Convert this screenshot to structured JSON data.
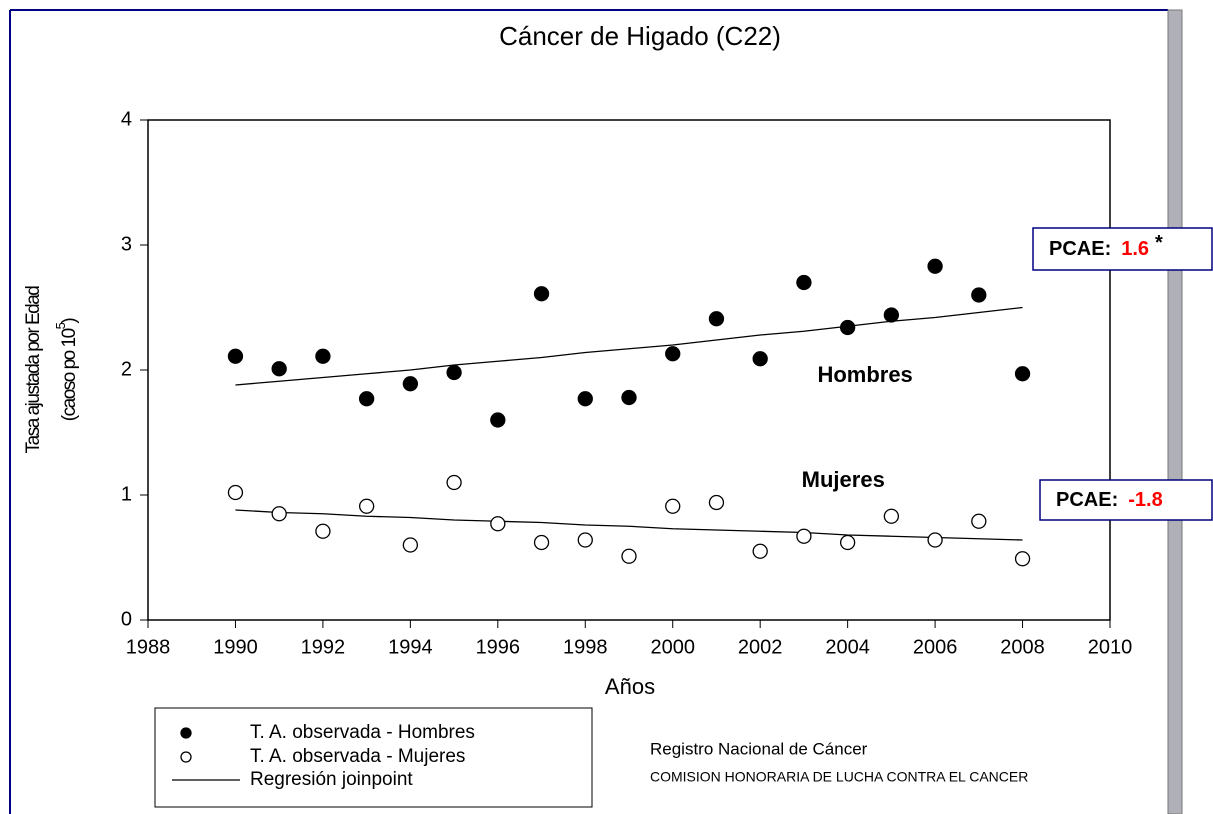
{
  "chart_data": {
    "type": "scatter",
    "title": "Cáncer de Higado (C22)",
    "x_label": "Años",
    "y_label": "Tasa ajustada por Edad",
    "y_label_2": {
      "text": "(caoso po 10",
      "sup": "5",
      "end": ")"
    },
    "x": [
      1990,
      1991,
      1992,
      1993,
      1994,
      1995,
      1996,
      1997,
      1998,
      1999,
      2000,
      2001,
      2002,
      2003,
      2004,
      2005,
      2006,
      2007,
      2008
    ],
    "xlim": [
      1988,
      2010
    ],
    "xticks": [
      1988,
      1990,
      1992,
      1994,
      1996,
      1998,
      2000,
      2002,
      2004,
      2006,
      2008,
      2010
    ],
    "ylim": [
      0,
      4
    ],
    "yticks": [
      0,
      1,
      2,
      3,
      4
    ],
    "series": [
      {
        "name": "T. A. observada - Hombres",
        "marker": "filled",
        "color": "#000000",
        "values": [
          2.11,
          2.01,
          2.11,
          1.77,
          1.89,
          1.98,
          1.6,
          2.61,
          1.77,
          1.78,
          2.13,
          2.41,
          2.09,
          2.7,
          2.34,
          2.44,
          2.83,
          2.6,
          1.97
        ]
      },
      {
        "name": "T. A. observada - Mujeres",
        "marker": "open",
        "color": "#000000",
        "values": [
          1.02,
          0.85,
          0.71,
          0.91,
          0.6,
          1.1,
          0.77,
          0.62,
          0.64,
          0.51,
          0.91,
          0.94,
          0.55,
          0.67,
          0.62,
          0.83,
          0.64,
          0.79,
          0.49
        ]
      }
    ],
    "regression": {
      "name": "Regresión joinpoint",
      "color": "#000000",
      "lines": [
        {
          "values": [
            1.88,
            1.91,
            1.94,
            1.97,
            2.0,
            2.04,
            2.07,
            2.1,
            2.14,
            2.17,
            2.2,
            2.24,
            2.28,
            2.31,
            2.35,
            2.39,
            2.42,
            2.46,
            2.5
          ]
        },
        {
          "values": [
            0.88,
            0.86,
            0.85,
            0.83,
            0.82,
            0.8,
            0.79,
            0.78,
            0.76,
            0.75,
            0.73,
            0.72,
            0.71,
            0.7,
            0.68,
            0.67,
            0.66,
            0.65,
            0.64
          ]
        }
      ]
    },
    "annotations": [
      {
        "text": "Hombres",
        "x": 2004.4,
        "y": 1.95
      },
      {
        "text": "Mujeres",
        "x": 2003.9,
        "y": 1.11
      }
    ],
    "pcae": [
      {
        "label": "PCAE:",
        "value": 1.6,
        "mark": "*"
      },
      {
        "label": "PCAE:",
        "value": -1.8
      }
    ],
    "footer": [
      "Registro Nacional de Cáncer",
      "COMISION HONORARIA DE LUCHA CONTRA EL CANCER"
    ]
  }
}
